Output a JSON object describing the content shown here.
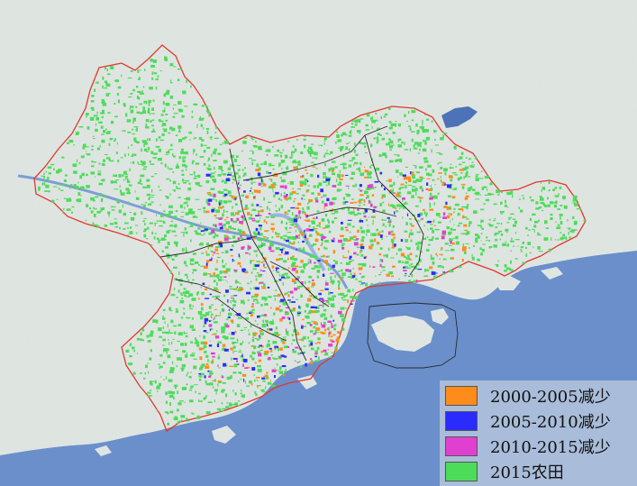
{
  "map": {
    "colors": {
      "sea": "#6a8fcb",
      "land": "#dfe6e2",
      "boundary_outer": "#e0392e",
      "boundary_inner": "#2b2b2b",
      "water_inland": "#4c72b8"
    }
  },
  "legend": {
    "items": [
      {
        "label": "2000-2005减少",
        "color": "#ff8c1a"
      },
      {
        "label": "2005-2010减少",
        "color": "#2b2bff"
      },
      {
        "label": "2010-2015减少",
        "color": "#e040d0"
      },
      {
        "label": "2015农田",
        "color": "#4ddc5a"
      }
    ]
  }
}
